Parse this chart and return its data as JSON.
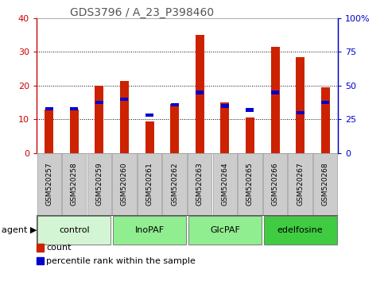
{
  "title": "GDS3796 / A_23_P398460",
  "samples": [
    "GSM520257",
    "GSM520258",
    "GSM520259",
    "GSM520260",
    "GSM520261",
    "GSM520262",
    "GSM520263",
    "GSM520264",
    "GSM520265",
    "GSM520266",
    "GSM520267",
    "GSM520268"
  ],
  "count_values": [
    13.0,
    13.0,
    20.0,
    21.5,
    9.5,
    14.5,
    35.0,
    15.0,
    10.5,
    31.5,
    28.5,
    19.5
  ],
  "percentile_values": [
    33.0,
    33.0,
    37.5,
    40.0,
    28.0,
    36.0,
    45.0,
    35.0,
    32.0,
    45.0,
    30.0,
    37.5
  ],
  "groups": [
    {
      "label": "control",
      "start": 0,
      "end": 3
    },
    {
      "label": "InoPAF",
      "start": 3,
      "end": 6
    },
    {
      "label": "GlcPAF",
      "start": 6,
      "end": 9
    },
    {
      "label": "edelfosine",
      "start": 9,
      "end": 12
    }
  ],
  "group_colors": [
    "#d4f5d4",
    "#90ee90",
    "#90ee90",
    "#40cc40"
  ],
  "left_ylim": [
    0,
    40
  ],
  "right_ylim": [
    0,
    100
  ],
  "left_yticks": [
    0,
    10,
    20,
    30,
    40
  ],
  "right_yticks": [
    0,
    25,
    50,
    75,
    100
  ],
  "right_yticklabels": [
    "0",
    "25",
    "50",
    "75",
    "100%"
  ],
  "count_color": "#cc2200",
  "percentile_color": "#0000cc",
  "cell_bg_color": "#cccccc",
  "cell_border_color": "#999999",
  "title_color": "#555555",
  "left_axis_color": "#cc0000",
  "right_axis_color": "#0000cc",
  "legend_items": [
    "count",
    "percentile rank within the sample"
  ],
  "agent_label": "agent"
}
